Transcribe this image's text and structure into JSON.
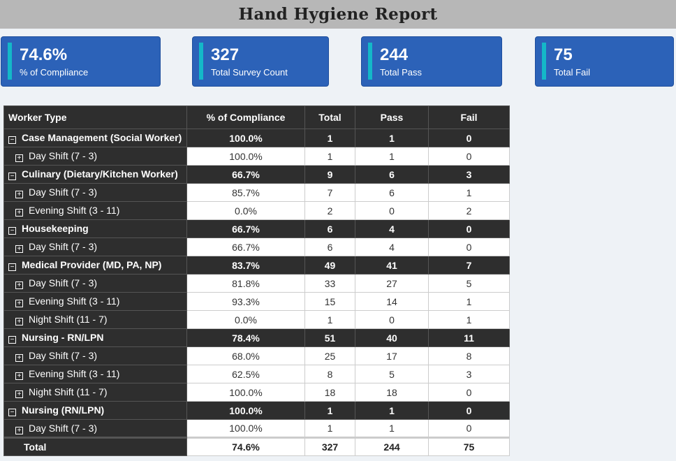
{
  "title": "Hand Hygiene Report",
  "kpis": [
    {
      "value": "74.6%",
      "label": "% of Compliance"
    },
    {
      "value": "327",
      "label": "Total Survey Count"
    },
    {
      "value": "244",
      "label": "Total Pass"
    },
    {
      "value": "75",
      "label": "Total Fail"
    }
  ],
  "colors": {
    "kpi_bg": "#2c62b8",
    "kpi_accent": "#14b8c8",
    "header_bg": "#2e2e2e"
  },
  "table": {
    "headers": {
      "worker_type": "Worker Type",
      "compliance": "% of Compliance",
      "total": "Total",
      "pass": "Pass",
      "fail": "Fail"
    },
    "groups": [
      {
        "name": "Case Management (Social Worker)",
        "compliance": "100.0%",
        "total": "1",
        "pass": "1",
        "fail": "0",
        "rows": [
          {
            "name": "Day Shift (7 - 3)",
            "compliance": "100.0%",
            "total": "1",
            "pass": "1",
            "fail": "0"
          }
        ]
      },
      {
        "name": "Culinary (Dietary/Kitchen Worker)",
        "compliance": "66.7%",
        "total": "9",
        "pass": "6",
        "fail": "3",
        "rows": [
          {
            "name": "Day Shift (7 - 3)",
            "compliance": "85.7%",
            "total": "7",
            "pass": "6",
            "fail": "1"
          },
          {
            "name": "Evening Shift (3 - 11)",
            "compliance": "0.0%",
            "total": "2",
            "pass": "0",
            "fail": "2"
          }
        ]
      },
      {
        "name": "Housekeeping",
        "compliance": "66.7%",
        "total": "6",
        "pass": "4",
        "fail": "0",
        "rows": [
          {
            "name": "Day Shift (7 - 3)",
            "compliance": "66.7%",
            "total": "6",
            "pass": "4",
            "fail": "0"
          }
        ]
      },
      {
        "name": "Medical Provider (MD, PA, NP)",
        "compliance": "83.7%",
        "total": "49",
        "pass": "41",
        "fail": "7",
        "rows": [
          {
            "name": "Day Shift (7 - 3)",
            "compliance": "81.8%",
            "total": "33",
            "pass": "27",
            "fail": "5"
          },
          {
            "name": "Evening Shift (3 - 11)",
            "compliance": "93.3%",
            "total": "15",
            "pass": "14",
            "fail": "1"
          },
          {
            "name": "Night Shift (11 - 7)",
            "compliance": "0.0%",
            "total": "1",
            "pass": "0",
            "fail": "1"
          }
        ]
      },
      {
        "name": "Nursing - RN/LPN",
        "compliance": "78.4%",
        "total": "51",
        "pass": "40",
        "fail": "11",
        "rows": [
          {
            "name": "Day Shift (7 - 3)",
            "compliance": "68.0%",
            "total": "25",
            "pass": "17",
            "fail": "8"
          },
          {
            "name": "Evening Shift (3 - 11)",
            "compliance": "62.5%",
            "total": "8",
            "pass": "5",
            "fail": "3"
          },
          {
            "name": "Night Shift (11 - 7)",
            "compliance": "100.0%",
            "total": "18",
            "pass": "18",
            "fail": "0"
          }
        ]
      },
      {
        "name": "Nursing (RN/LPN)",
        "compliance": "100.0%",
        "total": "1",
        "pass": "1",
        "fail": "0",
        "rows": [
          {
            "name": "Day Shift (7 - 3)",
            "compliance": "100.0%",
            "total": "1",
            "pass": "1",
            "fail": "0"
          }
        ]
      }
    ],
    "total": {
      "name": "Total",
      "compliance": "74.6%",
      "total": "327",
      "pass": "244",
      "fail": "75"
    }
  }
}
